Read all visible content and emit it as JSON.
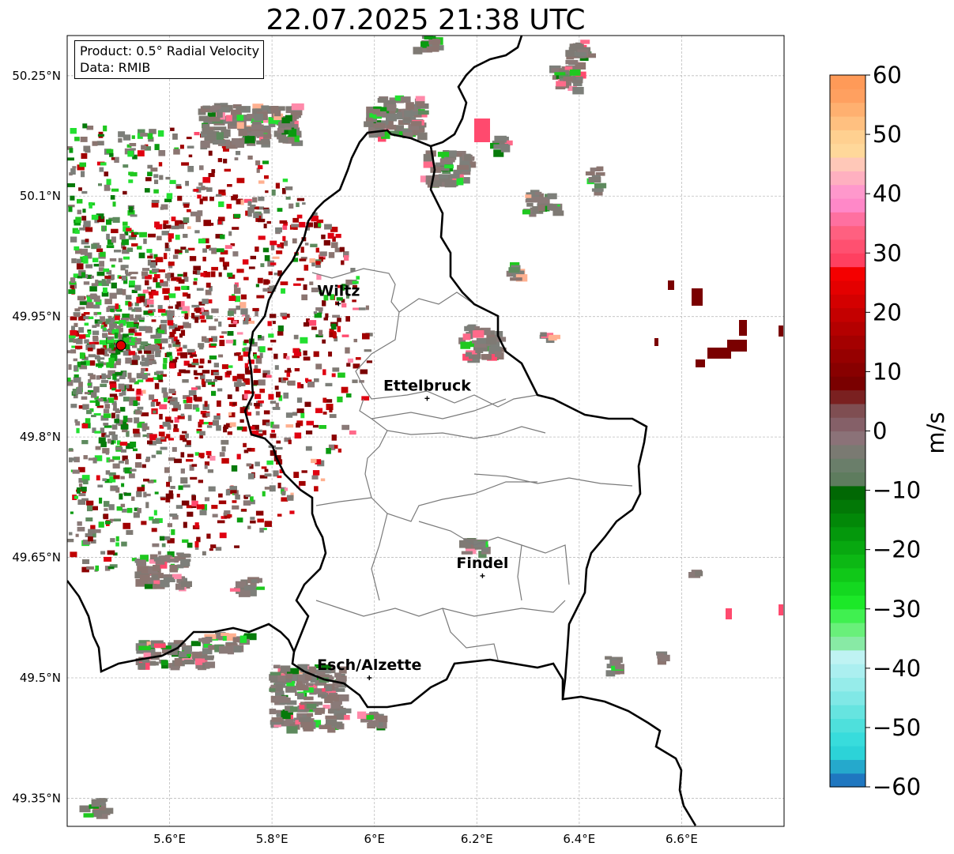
{
  "title": "22.07.2025 21:38 UTC",
  "info": {
    "product": "Product: 0.5° Radial Velocity",
    "data": "Data: RMIB"
  },
  "map": {
    "lon_range": [
      5.4,
      6.8
    ],
    "lat_range": [
      49.315,
      50.3
    ],
    "lat_ticks": [
      {
        "value": 50.25,
        "label": "50.25°N"
      },
      {
        "value": 50.1,
        "label": "50.1°N"
      },
      {
        "value": 49.95,
        "label": "49.95°N"
      },
      {
        "value": 49.8,
        "label": "49.8°N"
      },
      {
        "value": 49.65,
        "label": "49.65°N"
      },
      {
        "value": 49.5,
        "label": "49.5°N"
      },
      {
        "value": 49.35,
        "label": "49.35°N"
      }
    ],
    "lon_ticks": [
      {
        "value": 5.6,
        "label": "5.6°E"
      },
      {
        "value": 5.8,
        "label": "5.8°E"
      },
      {
        "value": 6.0,
        "label": "6°E"
      },
      {
        "value": 6.2,
        "label": "6.2°E"
      },
      {
        "value": 6.4,
        "label": "6.4°E"
      },
      {
        "value": 6.6,
        "label": "6.6°E"
      }
    ],
    "radar_site": {
      "lon": 5.505,
      "lat": 49.914
    },
    "cities": [
      {
        "name": "Wiltz",
        "lon": 5.93,
        "lat": 49.966
      },
      {
        "name": "Ettelbruck",
        "lon": 6.103,
        "lat": 49.848
      },
      {
        "name": "Findel",
        "lon": 6.211,
        "lat": 49.627
      },
      {
        "name": "Esch/Alzette",
        "lon": 5.99,
        "lat": 49.5
      }
    ]
  },
  "colorbar": {
    "unit": "m/s",
    "range": [
      -60,
      60
    ],
    "ticks": [
      {
        "value": 60,
        "label": "60"
      },
      {
        "value": 50,
        "label": "50"
      },
      {
        "value": 40,
        "label": "40"
      },
      {
        "value": 30,
        "label": "30"
      },
      {
        "value": 20,
        "label": "20"
      },
      {
        "value": 10,
        "label": "10"
      },
      {
        "value": 0,
        "label": "0"
      },
      {
        "value": -10,
        "label": "−10"
      },
      {
        "value": -20,
        "label": "−20"
      },
      {
        "value": -30,
        "label": "−30"
      },
      {
        "value": -40,
        "label": "−40"
      },
      {
        "value": -50,
        "label": "−50"
      },
      {
        "value": -60,
        "label": "−60"
      }
    ],
    "colors_bottom_to_top": [
      "#1f77c0",
      "#25a9cc",
      "#2cd3d8",
      "#38dcdc",
      "#4ee0dc",
      "#66e4e0",
      "#80e8e6",
      "#96ecea",
      "#abeff0",
      "#bff3f3",
      "#88eaa5",
      "#69f07a",
      "#40f050",
      "#1ce828",
      "#14d820",
      "#10c818",
      "#0cb814",
      "#08a810",
      "#04980c",
      "#028808",
      "#027806",
      "#016804",
      "#5e7c5e",
      "#6a7e6a",
      "#7a7a72",
      "#8b7278",
      "#856068",
      "#7f4e52",
      "#7a2020",
      "#7a0000",
      "#880000",
      "#960000",
      "#a40000",
      "#b40000",
      "#c40000",
      "#d40000",
      "#e40000",
      "#f40000",
      "#ff4060",
      "#ff5070",
      "#ff6080",
      "#ff70a0",
      "#ff88c8",
      "#ff98cc",
      "#ffb0c0",
      "#ffc8b8",
      "#ffd89a",
      "#ffd090",
      "#ffc080",
      "#ffb070",
      "#ffa060",
      "#ff9a58"
    ]
  }
}
